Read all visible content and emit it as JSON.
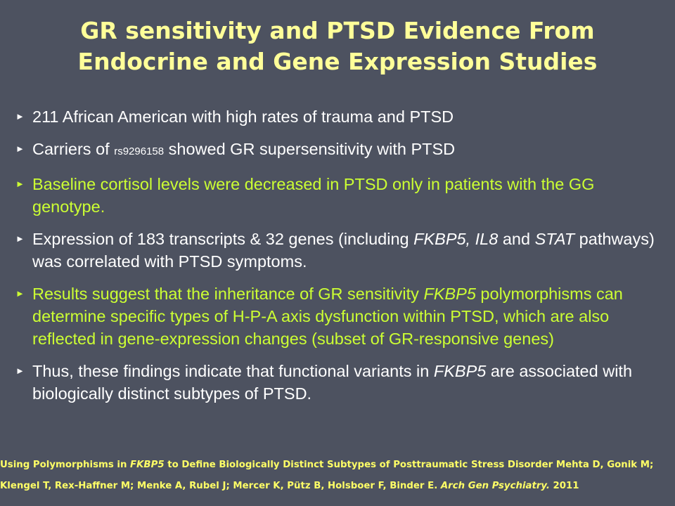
{
  "slide": {
    "title_line1": "GR sensitivity and PTSD Evidence From",
    "title_line2": "Endocrine and Gene Expression Studies",
    "bullet_marker": "►",
    "bullets": [
      {
        "segments": [
          {
            "text": "211 African American with high rates of trauma and PTSD"
          }
        ]
      },
      {
        "segments": [
          {
            "text": "Carriers of "
          },
          {
            "text": "rs9296158"
          },
          {
            "text": " showed GR supersensitivity with PTSD"
          }
        ]
      },
      {
        "segments": [
          {
            "text": "Baseline cortisol levels were decreased in PTSD only in patients with the GG genotype."
          }
        ]
      },
      {
        "segments": [
          {
            "text": "Expression of 183 transcripts & 32 genes (including "
          },
          {
            "text": "FKBP5, IL8"
          },
          {
            "text": " and "
          },
          {
            "text": "STAT"
          },
          {
            "text": " pathways) was correlated with PTSD  symptoms."
          }
        ]
      },
      {
        "segments": [
          {
            "text": "Results suggest that the inheritance of GR sensitivity "
          },
          {
            "text": "FKBP5"
          },
          {
            "text": " polymorphisms can determine specific types of H-P-A axis dysfunction within PTSD, which are also reflected in gene-expression changes (subset of GR-responsive genes)"
          }
        ]
      },
      {
        "segments": [
          {
            "text": "Thus, these findings indicate that functional variants in "
          },
          {
            "text": "FKBP5"
          },
          {
            "text": " are associated with biologically distinct subtypes of PTSD."
          }
        ]
      }
    ],
    "citation": {
      "line1_a": "Using Polymorphisms in ",
      "line1_b": "FKBP5",
      "line1_c": " to Define Biologically Distinct Subtypes of Posttraumatic Stress Disorder Mehta D, Gonik M;",
      "line2_a": "Klengel T, Rex-Haffner M; Menke A, Rubel J; Mercer K, Pütz B, Holsboer F, Binder E. ",
      "line2_b": "Arch Gen Psychiatry.",
      "line2_c": "  2011"
    }
  }
}
